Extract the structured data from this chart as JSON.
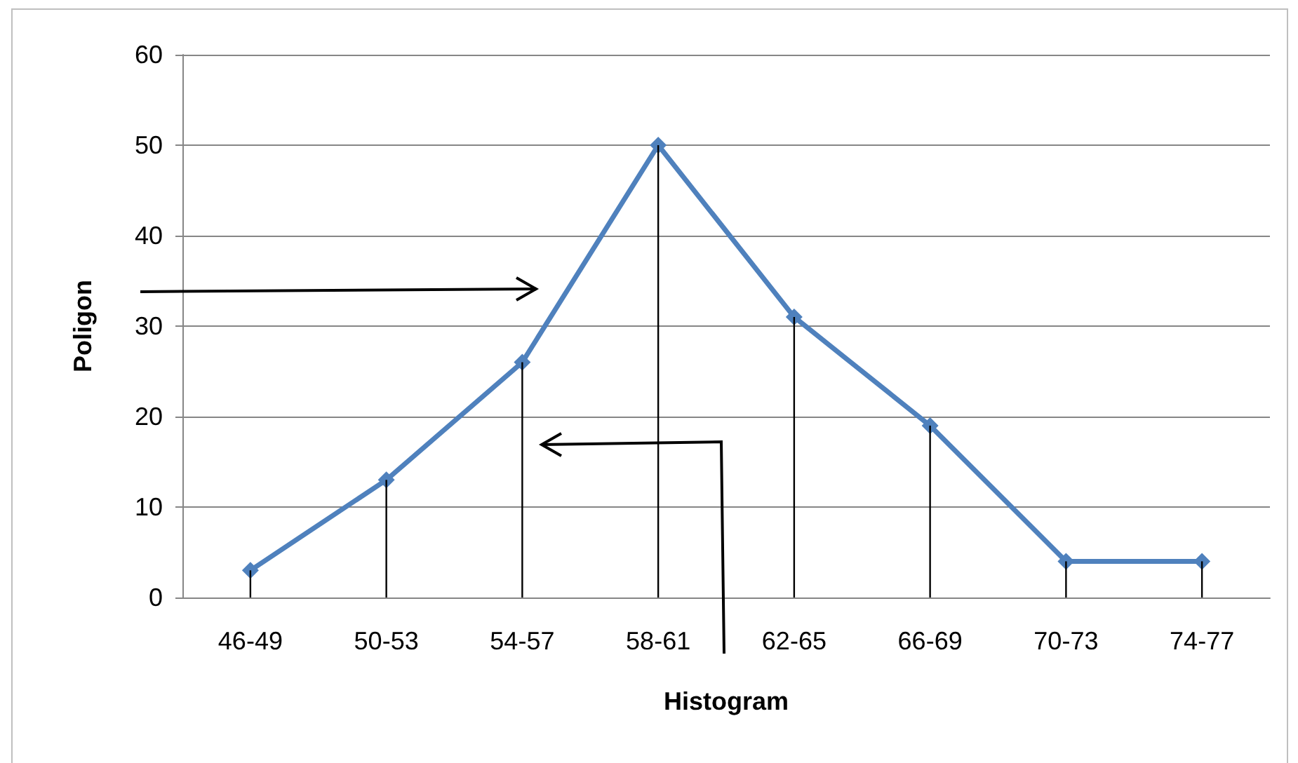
{
  "chart_data": {
    "type": "line",
    "xlabel": "Histogram",
    "ylabel": "Poligon",
    "categories": [
      "46-49",
      "50-53",
      "54-57",
      "58-61",
      "62-65",
      "66-69",
      "70-73",
      "74-77"
    ],
    "series": [
      {
        "type": "bar",
        "color": "#000000",
        "values": [
          3,
          13,
          26,
          50,
          31,
          19,
          4,
          4
        ]
      },
      {
        "color": "#4f81bd",
        "values": [
          3,
          13,
          26,
          50,
          31,
          19,
          4,
          4
        ]
      }
    ],
    "ylim": [
      0,
      60
    ],
    "yticks": [
      0,
      10,
      20,
      30,
      40,
      50,
      60
    ],
    "grid": "y",
    "marker": "diamond",
    "line_style": "solid"
  }
}
